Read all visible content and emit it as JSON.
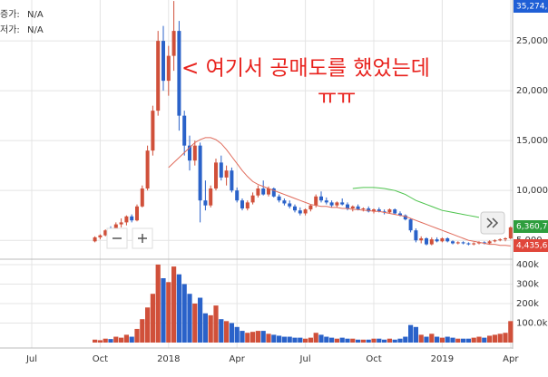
{
  "chart_data": {
    "type": "candlestick",
    "info": [
      {
        "label": "증가:",
        "value": "N/A"
      },
      {
        "label": "저가:",
        "value": "N/A"
      }
    ],
    "annotation": [
      "< 여기서 공매도를 했었는데",
      "ㅠㅠ"
    ],
    "price_labels": [
      {
        "text": "35,274,",
        "color": "#1f5fd6"
      },
      {
        "text": "6,360,7",
        "color": "#2e9e3e"
      },
      {
        "text": "4,435,6",
        "color": "#e0463a"
      }
    ],
    "categories": [
      "Jul",
      null,
      null,
      null,
      null,
      null,
      null,
      null,
      null,
      null,
      null,
      null,
      null,
      "Oct",
      null,
      null,
      null,
      null,
      null,
      null,
      null,
      null,
      null,
      null,
      null,
      null,
      "2018",
      null,
      null,
      null,
      null,
      null,
      null,
      null,
      null,
      null,
      null,
      null,
      null,
      "Apr",
      null,
      null,
      null,
      null,
      null,
      null,
      null,
      null,
      null,
      null,
      null,
      null,
      "Jul",
      null,
      null,
      null,
      null,
      null,
      null,
      null,
      null,
      null,
      null,
      null,
      null,
      "Oct",
      null,
      null,
      null,
      null,
      null,
      null,
      null,
      null,
      null,
      null,
      null,
      null,
      "2019",
      null,
      null,
      null,
      null,
      null,
      null,
      null,
      null,
      null,
      null,
      null,
      null,
      "Apr"
    ],
    "open": [
      null,
      null,
      null,
      null,
      null,
      null,
      null,
      null,
      null,
      null,
      null,
      null,
      4900,
      5300,
      5500,
      6000,
      5800,
      6600,
      6800,
      7400,
      7000,
      8400,
      10200,
      14000,
      18000,
      25000,
      21000,
      23500,
      26000,
      17500,
      14500,
      13000,
      14500,
      9000,
      8500,
      10200,
      12800,
      11300,
      12000,
      10000,
      9000,
      8200,
      8800,
      9500,
      10200,
      9600,
      10200,
      9400,
      9000,
      8700,
      8400,
      8000,
      7700,
      8100,
      8500,
      9400,
      9000,
      8800,
      8500,
      8800,
      8600,
      8200,
      8400,
      8100,
      8200,
      7900,
      8100,
      7900,
      7800,
      8100,
      7700,
      7500,
      7100,
      6000,
      5000,
      5200,
      4600,
      5100,
      4900,
      5200,
      4900,
      4700,
      4800,
      4700,
      4600,
      4700,
      4800,
      4700,
      4900,
      5000,
      5100,
      5200
    ],
    "high": [
      null,
      null,
      null,
      null,
      null,
      null,
      null,
      null,
      null,
      null,
      null,
      null,
      5400,
      5600,
      6100,
      6400,
      6800,
      7200,
      7500,
      7600,
      8600,
      10500,
      14500,
      18500,
      26000,
      26500,
      24500,
      29000,
      27000,
      18000,
      15500,
      15000,
      14800,
      11000,
      10500,
      13200,
      13500,
      12500,
      12300,
      10300,
      9200,
      9000,
      9800,
      10500,
      11000,
      10400,
      10300,
      9600,
      9200,
      9000,
      8600,
      8300,
      8200,
      8600,
      9600,
      9900,
      9300,
      9000,
      8900,
      9200,
      8800,
      8500,
      8600,
      8300,
      8400,
      8200,
      8300,
      8100,
      8200,
      8200,
      7900,
      7600,
      7200,
      6200,
      5400,
      5300,
      5300,
      5300,
      5300,
      5300,
      5000,
      4900,
      4900,
      4800,
      4800,
      4900,
      4900,
      5000,
      5100,
      5200,
      5300,
      6400
    ],
    "low": [
      null,
      null,
      null,
      null,
      null,
      null,
      null,
      null,
      null,
      null,
      null,
      null,
      4800,
      5100,
      5400,
      5700,
      5700,
      6300,
      6500,
      6800,
      6900,
      8300,
      10000,
      13500,
      17500,
      20000,
      19500,
      22000,
      16000,
      13500,
      12000,
      12500,
      6800,
      8000,
      8300,
      10000,
      11000,
      10500,
      9800,
      8800,
      8000,
      8000,
      8600,
      9300,
      9500,
      9400,
      9300,
      8800,
      8500,
      8200,
      7800,
      7500,
      7500,
      7900,
      8300,
      8800,
      8600,
      8300,
      8300,
      8500,
      8000,
      7900,
      8000,
      7900,
      7800,
      7700,
      7800,
      7600,
      7700,
      7600,
      7400,
      7000,
      5800,
      4800,
      4700,
      4500,
      4500,
      4800,
      4800,
      4800,
      4600,
      4600,
      4600,
      4500,
      4500,
      4600,
      4600,
      4600,
      4800,
      4900,
      4900,
      5100
    ],
    "close": [
      null,
      null,
      null,
      null,
      null,
      null,
      null,
      null,
      null,
      null,
      null,
      null,
      5300,
      5500,
      6000,
      5800,
      6600,
      6800,
      7400,
      7000,
      8400,
      10200,
      14000,
      18000,
      25000,
      21000,
      23500,
      26000,
      17500,
      14500,
      13000,
      14500,
      9000,
      8500,
      10200,
      12800,
      11300,
      12000,
      10000,
      9000,
      8200,
      8800,
      9500,
      10200,
      9600,
      10200,
      9400,
      9000,
      8700,
      8400,
      8000,
      7700,
      8100,
      8500,
      9400,
      9000,
      8800,
      8500,
      8800,
      8600,
      8200,
      8400,
      8100,
      8200,
      7900,
      8100,
      7900,
      7800,
      8100,
      7700,
      7500,
      7100,
      6000,
      5000,
      5200,
      4600,
      5100,
      4900,
      5200,
      4900,
      4700,
      4800,
      4700,
      4600,
      4700,
      4800,
      4700,
      4900,
      5000,
      5100,
      5200,
      6300
    ],
    "volume": [
      null,
      null,
      null,
      null,
      null,
      null,
      null,
      null,
      null,
      null,
      null,
      null,
      15000,
      12000,
      20000,
      18000,
      30000,
      25000,
      40000,
      30000,
      70000,
      120000,
      180000,
      250000,
      400000,
      330000,
      310000,
      390000,
      350000,
      300000,
      250000,
      200000,
      230000,
      150000,
      140000,
      190000,
      120000,
      110000,
      100000,
      80000,
      60000,
      50000,
      55000,
      60000,
      60000,
      45000,
      40000,
      35000,
      30000,
      30000,
      25000,
      25000,
      20000,
      25000,
      50000,
      40000,
      30000,
      25000,
      20000,
      25000,
      20000,
      20000,
      15000,
      15000,
      15000,
      20000,
      20000,
      15000,
      20000,
      15000,
      20000,
      30000,
      90000,
      80000,
      40000,
      30000,
      45000,
      30000,
      25000,
      30000,
      25000,
      20000,
      20000,
      20000,
      25000,
      30000,
      25000,
      35000,
      40000,
      45000,
      50000,
      110000
    ],
    "up_color": "#d0503a",
    "down_color": "#2a62c9",
    "lines": [
      {
        "color": "#e06a5a",
        "values": [
          null,
          null,
          null,
          null,
          null,
          null,
          null,
          null,
          null,
          null,
          null,
          null,
          null,
          null,
          null,
          null,
          null,
          null,
          null,
          null,
          null,
          null,
          null,
          null,
          null,
          null,
          12300,
          12800,
          13300,
          13800,
          14300,
          14800,
          15100,
          15300,
          15300,
          15100,
          14700,
          14100,
          13400,
          12700,
          12000,
          11400,
          10900,
          10600,
          10400,
          10200,
          10000,
          9800,
          9600,
          9400,
          9200,
          9000,
          8800,
          8600,
          8500,
          8400,
          8400,
          8300,
          8300,
          8200,
          8200,
          8100,
          8100,
          8000,
          8000,
          7900,
          7900,
          7800,
          7700,
          7600,
          7500,
          7400,
          7200,
          7000,
          6800,
          6600,
          6400,
          6200,
          6000,
          5800,
          5600,
          5400,
          5200,
          5000,
          4900,
          4800,
          4700,
          4600,
          4600,
          4500,
          4500,
          4436
        ]
      },
      {
        "color": "#4cc34c",
        "values": [
          null,
          null,
          null,
          null,
          null,
          null,
          null,
          null,
          null,
          null,
          null,
          null,
          null,
          null,
          null,
          null,
          null,
          null,
          null,
          null,
          null,
          null,
          null,
          null,
          null,
          null,
          null,
          null,
          null,
          null,
          null,
          null,
          null,
          null,
          null,
          null,
          null,
          null,
          null,
          null,
          null,
          null,
          null,
          null,
          null,
          null,
          null,
          null,
          null,
          null,
          null,
          null,
          null,
          null,
          null,
          null,
          null,
          null,
          null,
          null,
          null,
          10200,
          10250,
          10300,
          10300,
          10300,
          10250,
          10200,
          10100,
          10000,
          9800,
          9600,
          9300,
          9000,
          8800,
          8600,
          8400,
          8200,
          8000,
          7900,
          7800,
          7700,
          7600,
          7500,
          7400,
          7300,
          null,
          null,
          null,
          null,
          null,
          null
        ]
      }
    ],
    "ylim": [
      3200,
      29100
    ],
    "yticks": [
      {
        "value": 5000,
        "label": "5,000"
      },
      {
        "value": 10000,
        "label": "10,000"
      },
      {
        "value": 15000,
        "label": "15,000"
      },
      {
        "value": 20000,
        "label": "20,000"
      },
      {
        "value": 25000,
        "label": "25,000"
      }
    ],
    "vlim": [
      0,
      423000
    ],
    "vticks": [
      {
        "value": 100000,
        "label": "100.0k"
      },
      {
        "value": 200000,
        "label": "200k"
      },
      {
        "value": 300000,
        "label": "300k"
      },
      {
        "value": 400000,
        "label": "400k"
      }
    ],
    "grid": true
  }
}
